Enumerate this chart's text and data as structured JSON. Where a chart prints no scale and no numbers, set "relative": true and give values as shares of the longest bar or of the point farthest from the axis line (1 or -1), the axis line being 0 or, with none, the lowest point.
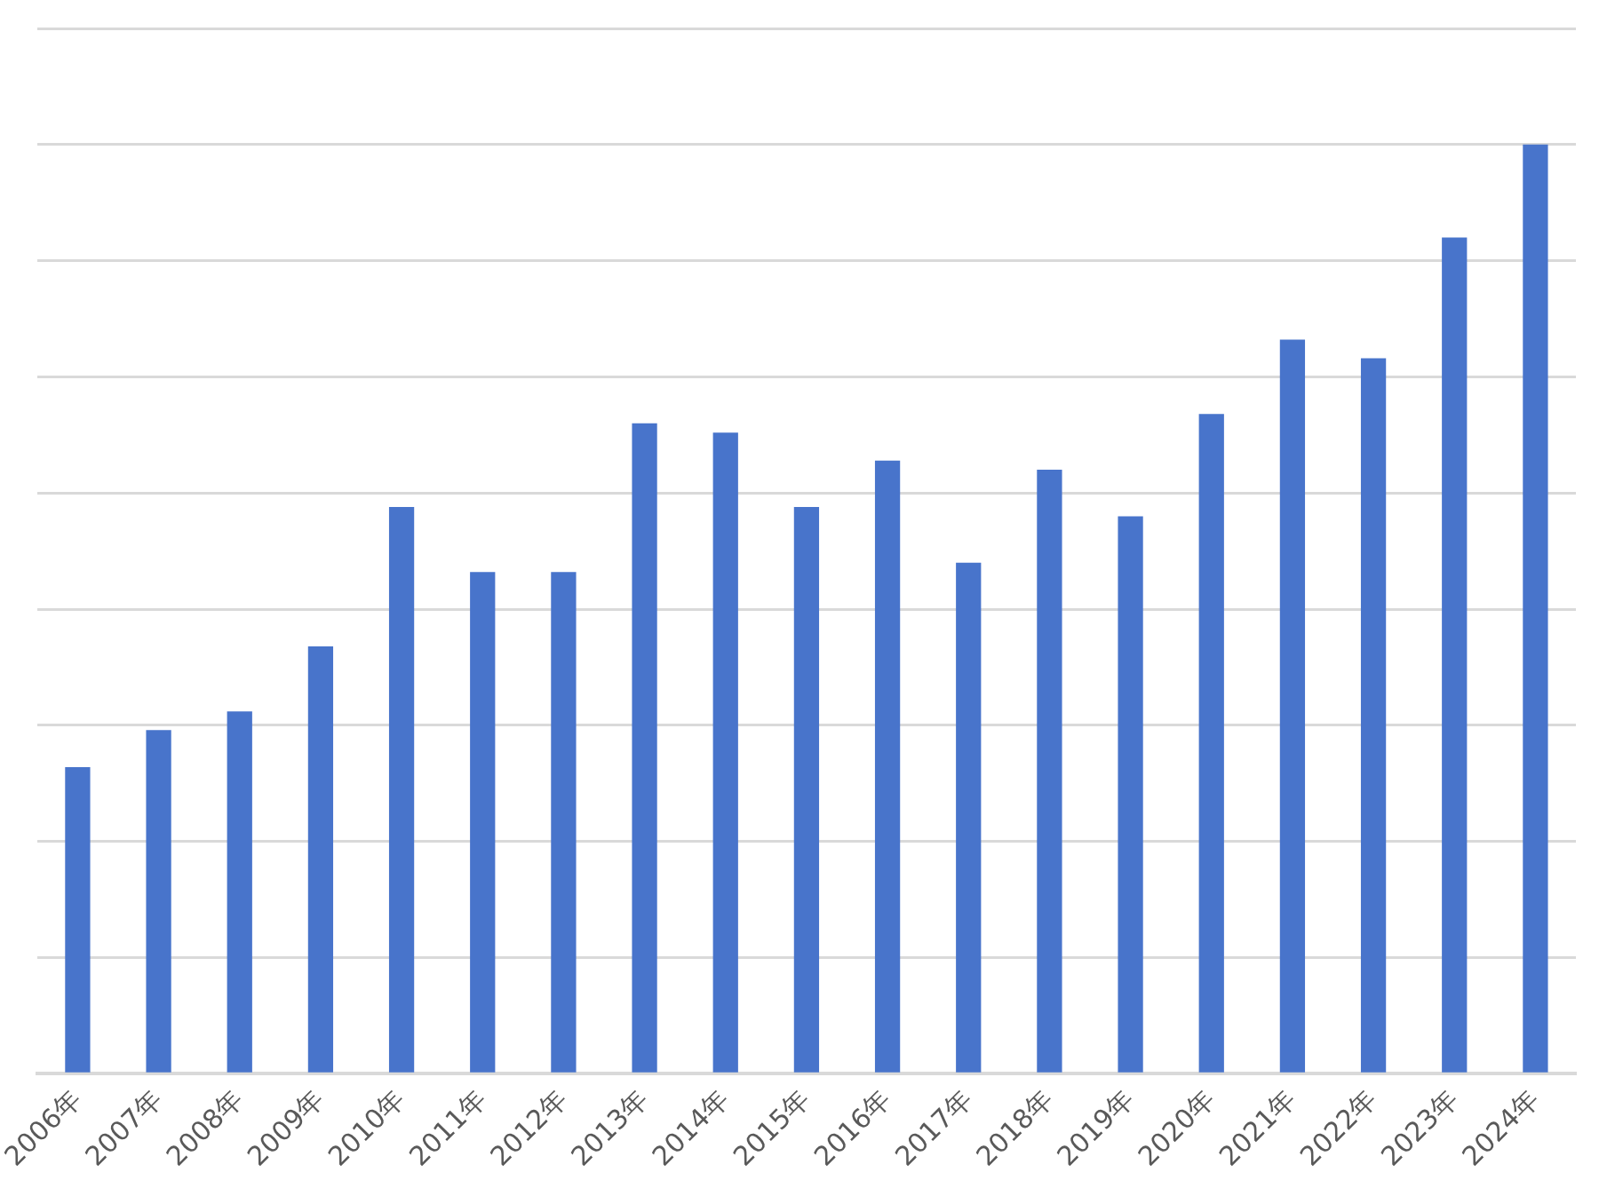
{
  "chart_data": {
    "type": "bar",
    "relative": true,
    "grid": "y",
    "color": "#4874cb",
    "categories": [
      "2006年",
      "2007年",
      "2008年",
      "2009年",
      "2010年",
      "2011年",
      "2012年",
      "2013年",
      "2014年",
      "2015年",
      "2016年",
      "2017年",
      "2018年",
      "2019年",
      "2020年",
      "2021年",
      "2022年",
      "2023年",
      "2024年"
    ],
    "values": [
      0.33,
      0.37,
      0.39,
      0.46,
      0.61,
      0.54,
      0.54,
      0.7,
      0.69,
      0.61,
      0.66,
      0.55,
      0.65,
      0.6,
      0.71,
      0.79,
      0.77,
      0.9,
      1
    ]
  }
}
